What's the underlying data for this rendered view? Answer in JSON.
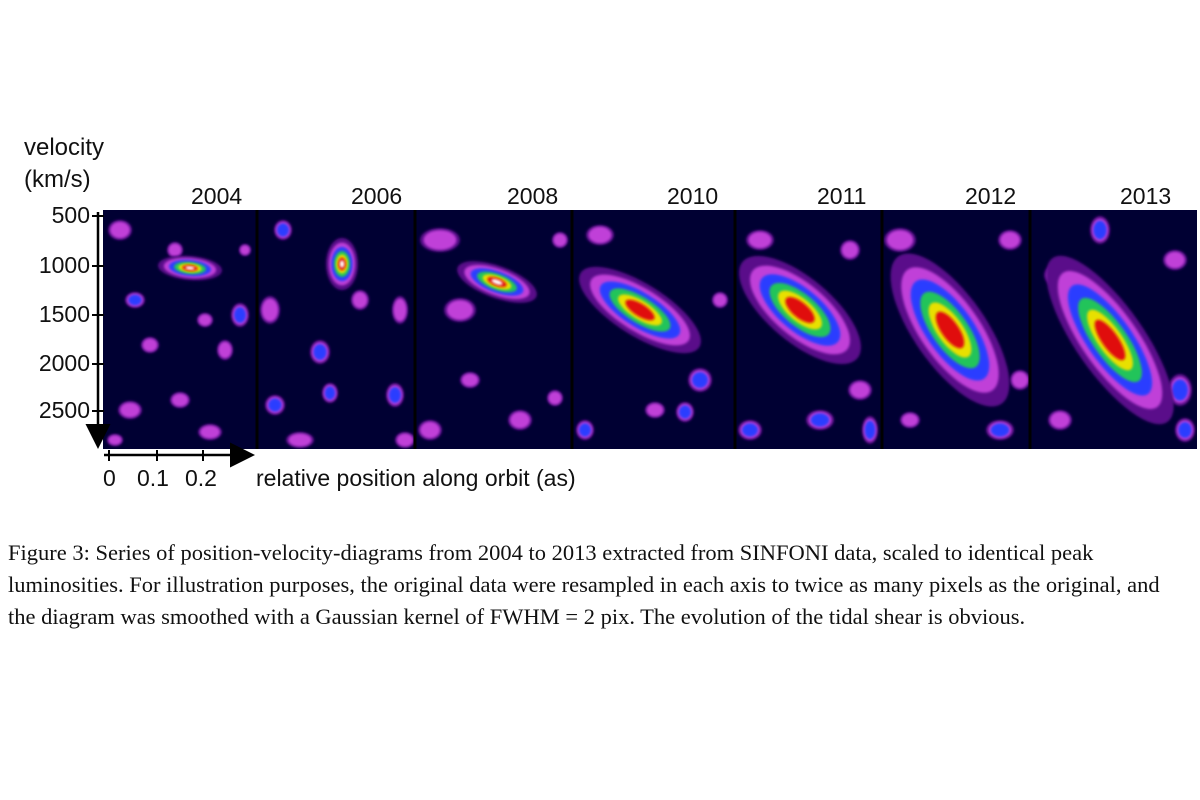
{
  "figure": {
    "y_axis_label_line1": "velocity",
    "y_axis_label_line2": "(km/s)",
    "y_ticks": [
      "500",
      "1000",
      "1500",
      "2000",
      "2500"
    ],
    "x_ticks": [
      "0",
      "0.1",
      "0.2"
    ],
    "x_axis_label": "relative position along orbit (as)",
    "panels": [
      "2004",
      "2006",
      "2008",
      "2010",
      "2011",
      "2012",
      "2013"
    ],
    "colormap": [
      "#000033",
      "#5a0f8a",
      "#c040d8",
      "#2a3cff",
      "#23c45a",
      "#e8e000",
      "#e01010",
      "#ffffff"
    ]
  },
  "caption": "Figure 3: Series of position-velocity-diagrams from 2004 to 2013 extracted from SINFONI data, scaled to identical peak luminosities. For illustration purposes, the original data were resampled in each axis to twice as many pixels as the original, and the diagram was smoothed with a Gaussian kernel of FWHM = 2 pix. The evolution of the tidal shear is obvious."
}
